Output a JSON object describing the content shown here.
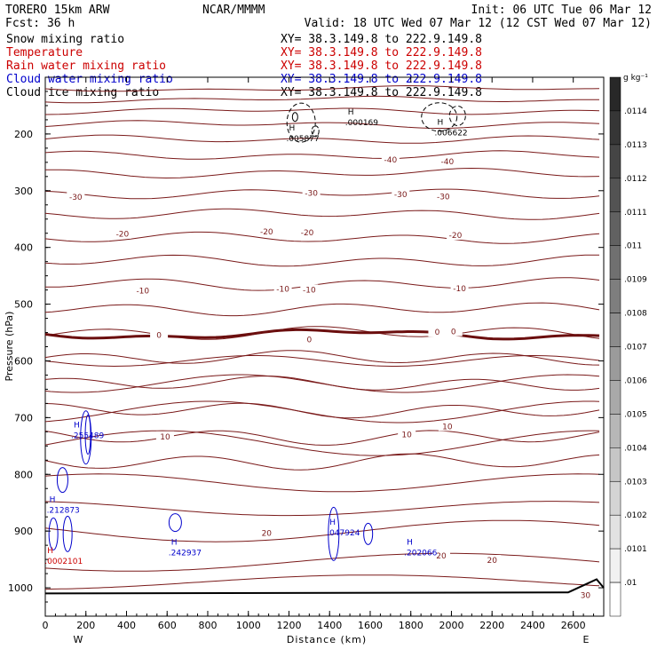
{
  "header": {
    "model": "TORERO   15km ARW",
    "center": "NCAR/MMMM",
    "init": "Init: 06 UTC Tue 06 Mar 12",
    "fcst": "Fcst:    36 h",
    "valid": "Valid: 18 UTC Wed 07 Mar 12 (12 CST Wed 07 Mar 12)"
  },
  "legend": [
    {
      "name": "Snow mixing ratio",
      "xy": "XY=  38.3.149.8 to 222.9.149.8",
      "color": "#000000",
      "xy_color": "#000000"
    },
    {
      "name": "Temperature",
      "xy": "XY=  38.3.149.8 to 222.9.149.8",
      "color": "#cc0000",
      "xy_color": "#cc0000"
    },
    {
      "name": "Rain water mixing ratio",
      "xy": "XY=  38.3.149.8 to 222.9.149.8",
      "color": "#cc0000",
      "xy_color": "#cc0000"
    },
    {
      "name": "Cloud water mixing ratio",
      "xy": "XY=  38.3.149.8 to 222.9.149.8",
      "color": "#0000cc",
      "xy_color": "#0000cc"
    },
    {
      "name": "Cloud ice mixing ratio",
      "xy": "XY=  38.3.149.8 to 222.9.149.8",
      "color": "#000000",
      "xy_color": "#000000"
    }
  ],
  "chart_data": {
    "type": "cross-section contour",
    "xlabel": "Distance (km)",
    "ylabel": "Pressure (hPa)",
    "xlim": [
      0,
      2750
    ],
    "ylim": [
      1050,
      100
    ],
    "xticks": [
      0,
      200,
      400,
      600,
      800,
      1000,
      1200,
      1400,
      1600,
      1800,
      2000,
      2200,
      2400,
      2600
    ],
    "yticks": [
      200,
      300,
      400,
      500,
      600,
      700,
      800,
      900,
      1000
    ],
    "x_end_labels": {
      "left": "W",
      "right": "E"
    },
    "colorbar": {
      "unit": "g kg⁻¹",
      "levels": [
        ".0114",
        ".0113",
        ".0112",
        ".0111",
        ".011",
        ".0109",
        ".0108",
        ".0107",
        ".0106",
        ".0105",
        ".0104",
        ".0103",
        ".0102",
        ".0101",
        ".01"
      ]
    },
    "temperature_labels": [
      {
        "text": "-40",
        "x": 1980,
        "p": 247
      },
      {
        "text": "-40",
        "x": 1700,
        "p": 244
      },
      {
        "text": "-30",
        "x": 150,
        "p": 310
      },
      {
        "text": "-30",
        "x": 1310,
        "p": 303
      },
      {
        "text": "-30",
        "x": 1750,
        "p": 305
      },
      {
        "text": "-30",
        "x": 1960,
        "p": 309
      },
      {
        "text": "-20",
        "x": 380,
        "p": 375
      },
      {
        "text": "-20",
        "x": 1090,
        "p": 371
      },
      {
        "text": "-20",
        "x": 1290,
        "p": 372
      },
      {
        "text": "-20",
        "x": 2020,
        "p": 377
      },
      {
        "text": "-10",
        "x": 480,
        "p": 475
      },
      {
        "text": "-10",
        "x": 1170,
        "p": 472
      },
      {
        "text": "-10",
        "x": 1300,
        "p": 473
      },
      {
        "text": "-10",
        "x": 2040,
        "p": 471
      },
      {
        "text": "0",
        "x": 560,
        "p": 553
      },
      {
        "text": "0",
        "x": 1300,
        "p": 561
      },
      {
        "text": "0",
        "x": 1930,
        "p": 548
      },
      {
        "text": "0",
        "x": 2010,
        "p": 547
      },
      {
        "text": "10",
        "x": 590,
        "p": 732
      },
      {
        "text": "10",
        "x": 1780,
        "p": 728
      },
      {
        "text": "10",
        "x": 1980,
        "p": 714
      },
      {
        "text": "20",
        "x": 1090,
        "p": 902
      },
      {
        "text": "20",
        "x": 1950,
        "p": 942
      },
      {
        "text": "20",
        "x": 2200,
        "p": 950
      },
      {
        "text": "30",
        "x": 2660,
        "p": 1012
      }
    ],
    "maxima": [
      {
        "label": "H",
        "value": ".000169",
        "x": 1490,
        "p": 172,
        "color": "#000000"
      },
      {
        "label": "H",
        "value": ".005877",
        "x": 1200,
        "p": 200,
        "color": "#000000"
      },
      {
        "label": "H",
        "value": ".006622",
        "x": 1930,
        "p": 190,
        "color": "#000000"
      },
      {
        "label": "H",
        "value": ".255489",
        "x": 140,
        "p": 724,
        "color": "#0000cc"
      },
      {
        "label": "H",
        "value": ".212873",
        "x": 20,
        "p": 855,
        "color": "#0000cc"
      },
      {
        "label": "H",
        "value": ".242937",
        "x": 620,
        "p": 930,
        "color": "#0000cc"
      },
      {
        "label": "H",
        "value": ".047924",
        "x": 1400,
        "p": 895,
        "color": "#0000cc"
      },
      {
        "label": "H",
        "value": ".202066",
        "x": 1780,
        "p": 930,
        "color": "#0000cc"
      },
      {
        "label": "H",
        "value": ".0002101",
        "x": 10,
        "p": 945,
        "color": "#cc0000"
      }
    ]
  }
}
